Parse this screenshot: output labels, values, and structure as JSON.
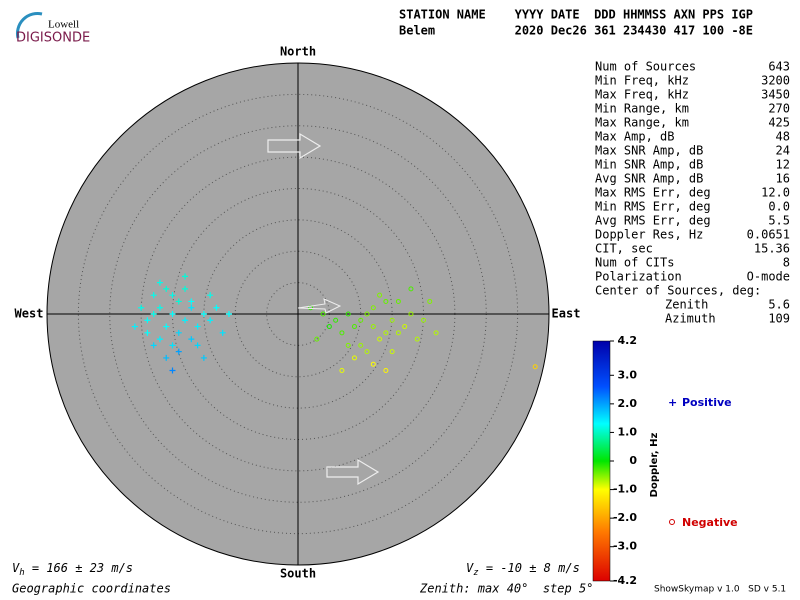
{
  "logo": {
    "top": "Lowell",
    "bottom": "DIGISONDE"
  },
  "header": {
    "line1": "STATION NAME    YYYY DATE  DDD HHMMSS AXN PPS IGP",
    "line2": "Belem           2020 Dec26 361 234430 417 100 -8E"
  },
  "compass": {
    "north": "North",
    "south": "South",
    "west": "West",
    "east": "East"
  },
  "sky": {
    "max_zenith": 40,
    "step": 5
  },
  "stats": [
    [
      "Num of Sources",
      "643"
    ],
    [
      "Min Freq, kHz",
      "3200"
    ],
    [
      "Max Freq, kHz",
      "3450"
    ],
    [
      "Min Range, km",
      "270"
    ],
    [
      "Max Range, km",
      "425"
    ],
    [
      "Max Amp, dB",
      "48"
    ],
    [
      "Max SNR Amp, dB",
      "24"
    ],
    [
      "Min SNR Amp, dB",
      "12"
    ],
    [
      "Avg SNR Amp, dB",
      "16"
    ],
    [
      "Max RMS Err, deg",
      "12.0"
    ],
    [
      "Min RMS Err, deg",
      "0.0"
    ],
    [
      "Avg RMS Err, deg",
      "5.5"
    ],
    [
      "Doppler Res, Hz",
      "0.0651"
    ],
    [
      "CIT, sec",
      "15.36"
    ],
    [
      "Num of CITs",
      "8"
    ],
    [
      "Polarization",
      "O-mode"
    ],
    [
      "Center of Sources, deg:",
      ""
    ],
    [
      "Zenith",
      "5.6"
    ],
    [
      "Azimuth",
      "109"
    ]
  ],
  "colorbar": {
    "label": "Doppler, Hz",
    "lim": [
      -4.2,
      4.2
    ],
    "ticks": [
      4.2,
      {
        "value": 3,
        "label": "3.0"
      },
      {
        "value": 2,
        "label": "2.0"
      },
      {
        "value": 1,
        "label": "1.0"
      },
      0,
      {
        "value": -1,
        "label": "-1.0"
      },
      {
        "value": -2,
        "label": "-2.0"
      },
      {
        "value": -3,
        "label": "-3.0"
      },
      -4.2
    ]
  },
  "legend": {
    "positive": "Positive",
    "negative": "Negative"
  },
  "points": [
    {
      "x": -20,
      "y": 0,
      "doppler": 1.3
    },
    {
      "x": -22,
      "y": 1,
      "doppler": 1.2
    },
    {
      "x": -18,
      "y": -1,
      "doppler": 1.4
    },
    {
      "x": -19,
      "y": 2,
      "doppler": 1.1
    },
    {
      "x": -21,
      "y": -2,
      "doppler": 1.3
    },
    {
      "x": -17,
      "y": 1,
      "doppler": 1.5
    },
    {
      "x": -23,
      "y": 0,
      "doppler": 1.2
    },
    {
      "x": -16,
      "y": -2,
      "doppler": 1.4
    },
    {
      "x": -24,
      "y": -1,
      "doppler": 1.3
    },
    {
      "x": -20,
      "y": 3,
      "doppler": 1.2
    },
    {
      "x": -19,
      "y": -3,
      "doppler": 1.6
    },
    {
      "x": -18,
      "y": 4,
      "doppler": 1.1
    },
    {
      "x": -22,
      "y": -4,
      "doppler": 1.4
    },
    {
      "x": -15,
      "y": 0,
      "doppler": 1.3
    },
    {
      "x": -25,
      "y": 1,
      "doppler": 1.2
    },
    {
      "x": -21,
      "y": 4,
      "doppler": 1.1
    },
    {
      "x": -17,
      "y": -4,
      "doppler": 1.7
    },
    {
      "x": -20,
      "y": -5,
      "doppler": 1.5
    },
    {
      "x": -14,
      "y": -1,
      "doppler": 1.4
    },
    {
      "x": -23,
      "y": 3,
      "doppler": 1.2
    },
    {
      "x": -19,
      "y": -6,
      "doppler": 2.0
    },
    {
      "x": -21,
      "y": -7,
      "doppler": 1.8
    },
    {
      "x": -16,
      "y": -5,
      "doppler": 1.6
    },
    {
      "x": -24,
      "y": -3,
      "doppler": 1.3
    },
    {
      "x": -13,
      "y": 1,
      "doppler": 1.3
    },
    {
      "x": -18,
      "y": 6,
      "doppler": 1.1
    },
    {
      "x": -22,
      "y": 5,
      "doppler": 1.2
    },
    {
      "x": -26,
      "y": -2,
      "doppler": 1.4
    },
    {
      "x": -12,
      "y": -3,
      "doppler": 1.5
    },
    {
      "x": -20,
      "y": -9,
      "doppler": 2.2
    },
    {
      "x": -15,
      "y": -7,
      "doppler": 1.7
    },
    {
      "x": -17,
      "y": 2,
      "doppler": 1.3
    },
    {
      "x": -23,
      "y": -5,
      "doppler": 1.6
    },
    {
      "x": -11,
      "y": 0,
      "doppler": 1.3
    },
    {
      "x": -14,
      "y": 3,
      "doppler": 1.2
    },
    {
      "x": 12,
      "y": -2,
      "doppler": -0.6
    },
    {
      "x": 10,
      "y": -1,
      "doppler": -0.4
    },
    {
      "x": 14,
      "y": -3,
      "doppler": -0.7
    },
    {
      "x": 11,
      "y": 0,
      "doppler": -0.5
    },
    {
      "x": 13,
      "y": -4,
      "doppler": -0.8
    },
    {
      "x": 9,
      "y": -2,
      "doppler": -0.3
    },
    {
      "x": 15,
      "y": -1,
      "doppler": -0.6
    },
    {
      "x": 8,
      "y": 0,
      "doppler": -0.2
    },
    {
      "x": 16,
      "y": -3,
      "doppler": -0.7
    },
    {
      "x": 12,
      "y": 1,
      "doppler": -0.5
    },
    {
      "x": 10,
      "y": -5,
      "doppler": -0.6
    },
    {
      "x": 14,
      "y": 2,
      "doppler": -0.4
    },
    {
      "x": 7,
      "y": -3,
      "doppler": -0.3
    },
    {
      "x": 17,
      "y": -2,
      "doppler": -0.8
    },
    {
      "x": 11,
      "y": -6,
      "doppler": -0.7
    },
    {
      "x": 6,
      "y": -1,
      "doppler": -0.2
    },
    {
      "x": 13,
      "y": 3,
      "doppler": -0.5
    },
    {
      "x": 18,
      "y": 0,
      "doppler": -0.6
    },
    {
      "x": 9,
      "y": -7,
      "doppler": -0.9
    },
    {
      "x": 15,
      "y": -6,
      "doppler": -0.8
    },
    {
      "x": 5,
      "y": -2,
      "doppler": -0.1
    },
    {
      "x": 19,
      "y": -4,
      "doppler": -0.7
    },
    {
      "x": 12,
      "y": -8,
      "doppler": -1.0
    },
    {
      "x": 4,
      "y": 0,
      "doppler": -0.3
    },
    {
      "x": 16,
      "y": 2,
      "doppler": -0.4
    },
    {
      "x": 8,
      "y": -5,
      "doppler": -0.5
    },
    {
      "x": 20,
      "y": -1,
      "doppler": -0.6
    },
    {
      "x": 3,
      "y": -4,
      "doppler": -0.4
    },
    {
      "x": 14,
      "y": -9,
      "doppler": -1.1
    },
    {
      "x": 21,
      "y": 2,
      "doppler": -0.5
    },
    {
      "x": 2,
      "y": 1,
      "doppler": -0.2
    },
    {
      "x": 18,
      "y": 4,
      "doppler": -0.3
    },
    {
      "x": 7,
      "y": -9,
      "doppler": -0.9
    },
    {
      "x": 22,
      "y": -3,
      "doppler": -0.7
    },
    {
      "x": 37.8,
      "y": -8.4,
      "doppler": -1.5
    }
  ],
  "footer": {
    "vh_base": "V",
    "vh_sub": "h",
    "vh_rest": " = 166 ± 23 m/s",
    "vz_base": "V",
    "vz_sub": "z",
    "vz_rest": " = -10 ± 8 m/s",
    "coords": "Geographic coordinates",
    "zenith": "Zenith: max 40°  step 5°",
    "version": "ShowSkymap v 1.0   SD v 5.1"
  }
}
